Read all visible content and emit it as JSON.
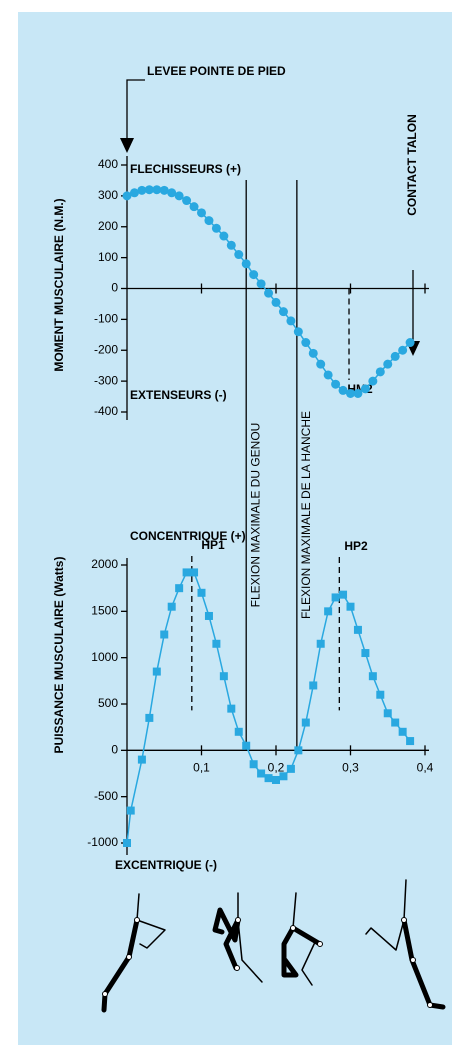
{
  "chart_data": [
    {
      "type": "line",
      "ylabel": "MOMENT MUSCULAIRE (N.M.)",
      "arrows": {
        "start": "LEVEE POINTE DE PIED",
        "end": "CONTACT TALON"
      },
      "annotations": [
        {
          "text": "FLECHISSEURS (+)"
        },
        {
          "text": "EXTENSEURS (-)"
        }
      ],
      "peaks": [
        {
          "text": "HM2",
          "x": 0.298
        }
      ],
      "verticals": [
        {
          "text": "FLEXION MAXIMALE DU GENOU",
          "x": 0.16
        },
        {
          "text": "FLEXION MAXIMALE DE LA HANCHE",
          "x": 0.228
        }
      ],
      "marker": "circle",
      "xlim": [
        0,
        0.4
      ],
      "ylim": [
        -400,
        400
      ],
      "yticks": [
        -400,
        -300,
        -200,
        -100,
        0,
        100,
        200,
        300,
        400
      ],
      "x": [
        0,
        0.01,
        0.02,
        0.03,
        0.04,
        0.05,
        0.06,
        0.07,
        0.08,
        0.09,
        0.1,
        0.11,
        0.12,
        0.13,
        0.14,
        0.15,
        0.16,
        0.17,
        0.18,
        0.19,
        0.2,
        0.21,
        0.22,
        0.23,
        0.24,
        0.25,
        0.26,
        0.27,
        0.28,
        0.29,
        0.3,
        0.31,
        0.32,
        0.33,
        0.34,
        0.35,
        0.36,
        0.37,
        0.38
      ],
      "series": [
        {
          "color": "#29a8e0",
          "values": [
            300,
            310,
            318,
            320,
            320,
            318,
            310,
            300,
            285,
            265,
            245,
            220,
            195,
            170,
            140,
            110,
            80,
            45,
            15,
            -15,
            -45,
            -75,
            -105,
            -140,
            -175,
            -210,
            -245,
            -280,
            -310,
            -330,
            -340,
            -340,
            -325,
            -300,
            -270,
            -245,
            -220,
            -200,
            -175
          ]
        }
      ]
    },
    {
      "type": "line",
      "ylabel": "PUISSANCE MUSCULAIRE (Watts)",
      "annotations": [
        {
          "text": "CONCENTRIQUE (+)"
        },
        {
          "text": "EXCENTRIQUE (-)"
        }
      ],
      "peaks": [
        {
          "text": "HP1",
          "x": 0.087
        },
        {
          "text": "HP2",
          "x": 0.285
        }
      ],
      "marker": "square",
      "xlim": [
        0,
        0.4
      ],
      "ylim": [
        -1000,
        2000
      ],
      "xticks": [
        {
          "value": 0.1,
          "label": "0,1"
        },
        {
          "value": 0.2,
          "label": "0,2"
        },
        {
          "value": 0.3,
          "label": "0,3"
        },
        {
          "value": 0.4,
          "label": "0,4"
        }
      ],
      "yticks": [
        -1000,
        -500,
        0,
        500,
        1000,
        1500,
        2000
      ],
      "x": [
        0,
        0.005,
        0.02,
        0.03,
        0.04,
        0.05,
        0.06,
        0.07,
        0.08,
        0.09,
        0.1,
        0.11,
        0.12,
        0.13,
        0.14,
        0.15,
        0.16,
        0.17,
        0.18,
        0.19,
        0.2,
        0.21,
        0.22,
        0.23,
        0.24,
        0.25,
        0.26,
        0.27,
        0.28,
        0.29,
        0.3,
        0.31,
        0.32,
        0.33,
        0.34,
        0.35,
        0.36,
        0.37,
        0.38
      ],
      "series": [
        {
          "color": "#29a8e0",
          "values": [
            -1000,
            -650,
            -100,
            350,
            850,
            1250,
            1550,
            1750,
            1920,
            1920,
            1700,
            1450,
            1150,
            800,
            450,
            200,
            50,
            -150,
            -250,
            -300,
            -320,
            -280,
            -200,
            0,
            300,
            700,
            1150,
            1500,
            1650,
            1680,
            1550,
            1300,
            1050,
            800,
            600,
            400,
            300,
            200,
            100
          ]
        }
      ]
    }
  ]
}
